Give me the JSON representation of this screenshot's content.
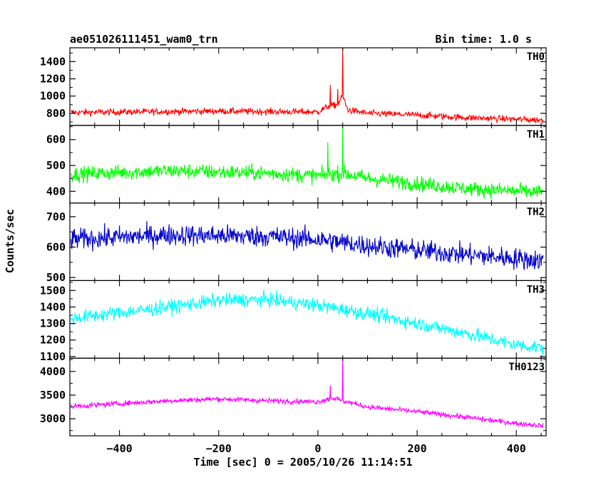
{
  "header": {
    "title": "ae051026111451_wam0_trn",
    "bin_time": "Bin time: 1.0 s"
  },
  "chart_data": {
    "type": "line",
    "title": "ae051026111451_wam0_trn",
    "subtitle": "Bin time: 1.0 s",
    "xlabel": "Time [sec] 0 = 2005/10/26 11:14:51",
    "ylabel": "Counts/sec",
    "xlim": [
      -500,
      460
    ],
    "x_ticks": [
      -400,
      -200,
      0,
      200,
      400
    ],
    "x_tick_labels": [
      "−400",
      "−200",
      "0",
      "200",
      "400"
    ],
    "grid": false,
    "panels": [
      {
        "name": "TH0",
        "color": "#ff0000",
        "ylim": [
          660,
          1560
        ],
        "y_ticks": [
          800,
          1000,
          1200,
          1400
        ],
        "y_tick_labels": [
          "800",
          "1000",
          "1200",
          "1400"
        ],
        "trend": [
          [
            -500,
            810
          ],
          [
            -200,
            825
          ],
          [
            0,
            815
          ],
          [
            20,
            880
          ],
          [
            40,
            900
          ],
          [
            50,
            1000
          ],
          [
            60,
            840
          ],
          [
            100,
            800
          ],
          [
            200,
            780
          ],
          [
            300,
            750
          ],
          [
            460,
            720
          ]
        ],
        "noise": 50,
        "spikes": [
          [
            50,
            1560
          ],
          [
            25,
            1130
          ],
          [
            40,
            1080
          ]
        ]
      },
      {
        "name": "TH1",
        "color": "#00ff00",
        "ylim": [
          355,
          655
        ],
        "y_ticks": [
          400,
          500,
          600
        ],
        "y_tick_labels": [
          "400",
          "500",
          "600"
        ],
        "trend": [
          [
            -500,
            465
          ],
          [
            -300,
            480
          ],
          [
            -100,
            470
          ],
          [
            0,
            460
          ],
          [
            50,
            470
          ],
          [
            100,
            450
          ],
          [
            200,
            430
          ],
          [
            300,
            410
          ],
          [
            460,
            395
          ]
        ],
        "noise": 38,
        "spikes": [
          [
            50,
            650
          ],
          [
            20,
            590
          ]
        ]
      },
      {
        "name": "TH2",
        "color": "#0000cd",
        "ylim": [
          490,
          745
        ],
        "y_ticks": [
          500,
          600,
          700
        ],
        "y_tick_labels": [
          "500",
          "600",
          "700"
        ],
        "trend": [
          [
            -500,
            625
          ],
          [
            -300,
            640
          ],
          [
            -100,
            635
          ],
          [
            0,
            625
          ],
          [
            100,
            605
          ],
          [
            200,
            590
          ],
          [
            300,
            575
          ],
          [
            460,
            555
          ]
        ],
        "noise": 45,
        "spikes": []
      },
      {
        "name": "TH3",
        "color": "#00ffff",
        "ylim": [
          1090,
          1560
        ],
        "y_ticks": [
          1100,
          1200,
          1300,
          1400,
          1500
        ],
        "y_tick_labels": [
          "1100",
          "1200",
          "1300",
          "1400",
          "1500"
        ],
        "trend": [
          [
            -500,
            1330
          ],
          [
            -300,
            1400
          ],
          [
            -200,
            1440
          ],
          [
            -100,
            1445
          ],
          [
            0,
            1410
          ],
          [
            100,
            1360
          ],
          [
            200,
            1300
          ],
          [
            300,
            1240
          ],
          [
            400,
            1170
          ],
          [
            460,
            1150
          ]
        ],
        "noise": 55,
        "spikes": []
      },
      {
        "name": "TH0123",
        "color": "#ff00ff",
        "ylim": [
          2640,
          4280
        ],
        "y_ticks": [
          3000,
          3500,
          4000
        ],
        "y_tick_labels": [
          "3000",
          "3500",
          "4000"
        ],
        "trend": [
          [
            -500,
            3260
          ],
          [
            -300,
            3380
          ],
          [
            -200,
            3420
          ],
          [
            -100,
            3380
          ],
          [
            0,
            3360
          ],
          [
            30,
            3440
          ],
          [
            50,
            3380
          ],
          [
            100,
            3250
          ],
          [
            200,
            3150
          ],
          [
            300,
            3030
          ],
          [
            400,
            2900
          ],
          [
            460,
            2850
          ]
        ],
        "noise": 70,
        "spikes": [
          [
            50,
            4280
          ],
          [
            25,
            3700
          ]
        ]
      }
    ]
  }
}
